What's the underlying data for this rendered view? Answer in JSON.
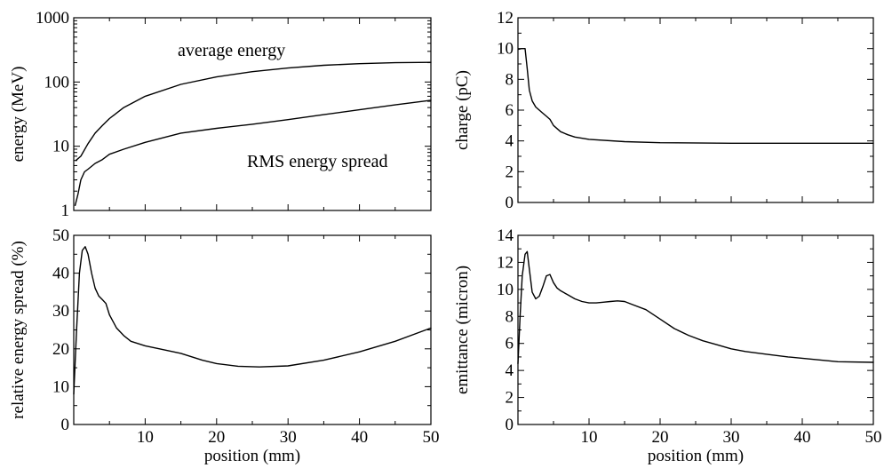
{
  "chart_data": [
    {
      "type": "line",
      "panel": "top-left",
      "xlabel": "",
      "ylabel": "energy (MeV)",
      "xlim": [
        0,
        50
      ],
      "ylim": [
        1,
        1000
      ],
      "yscale": "log",
      "xticks": [
        0,
        10,
        20,
        30,
        40,
        50
      ],
      "xtick_labels": [],
      "yticks": [
        1,
        10,
        100,
        1000
      ],
      "ytick_labels": [
        "1",
        "10",
        "100",
        "1000"
      ],
      "annotations": [
        "average energy",
        "RMS energy spread"
      ],
      "series": [
        {
          "name": "average energy",
          "x": [
            0.3,
            1.0,
            2.0,
            3.0,
            4.0,
            5.0,
            7.0,
            10.0,
            15.0,
            20.0,
            25.0,
            30.0,
            35.0,
            40.0,
            45.0,
            50.0
          ],
          "y": [
            6.0,
            7.0,
            11.0,
            16.0,
            21.0,
            27.0,
            40.0,
            60.0,
            92.0,
            120.0,
            145.0,
            165.0,
            182.0,
            193.0,
            200.0,
            202.0
          ]
        },
        {
          "name": "RMS energy spread",
          "x": [
            0.2,
            0.6,
            1.0,
            1.5,
            2.0,
            3.0,
            4.0,
            5.0,
            7.0,
            10.0,
            15.0,
            20.0,
            25.0,
            30.0,
            35.0,
            40.0,
            45.0,
            50.0
          ],
          "y": [
            1.2,
            1.8,
            3.0,
            4.0,
            4.4,
            5.4,
            6.2,
            7.5,
            9.0,
            11.5,
            16.0,
            19.0,
            22.0,
            26.0,
            31.0,
            37.0,
            44.0,
            52.0
          ]
        }
      ]
    },
    {
      "type": "line",
      "panel": "top-right",
      "xlabel": "",
      "ylabel": "charge (pC)",
      "xlim": [
        0,
        50
      ],
      "ylim": [
        0,
        12
      ],
      "xticks": [
        0,
        10,
        20,
        30,
        40,
        50
      ],
      "xtick_labels": [],
      "yticks": [
        0,
        2,
        4,
        6,
        8,
        10,
        12
      ],
      "ytick_labels": [
        "0",
        "2",
        "4",
        "6",
        "8",
        "10",
        "12"
      ],
      "series": [
        {
          "x": [
            0.1,
            0.5,
            1.0,
            1.3,
            1.6,
            2.0,
            2.5,
            3.0,
            3.5,
            4.0,
            4.5,
            5.0,
            6.0,
            7.0,
            8.0,
            10.0,
            15.0,
            20.0,
            30.0,
            40.0,
            50.0
          ],
          "y": [
            9.95,
            10.0,
            10.0,
            8.7,
            7.3,
            6.6,
            6.2,
            6.0,
            5.8,
            5.6,
            5.4,
            5.0,
            4.6,
            4.4,
            4.25,
            4.1,
            3.95,
            3.88,
            3.85,
            3.85,
            3.85
          ]
        }
      ]
    },
    {
      "type": "line",
      "panel": "bottom-left",
      "xlabel": "position (mm)",
      "ylabel": "relative energy spread (%)",
      "xlim": [
        0,
        50
      ],
      "ylim": [
        0,
        50
      ],
      "xticks": [
        0,
        10,
        20,
        30,
        40,
        50
      ],
      "xtick_labels": [
        "",
        "10",
        "20",
        "30",
        "40",
        "50"
      ],
      "yticks": [
        0,
        10,
        20,
        30,
        40,
        50
      ],
      "ytick_labels": [
        "0",
        "10",
        "20",
        "30",
        "40",
        "50"
      ],
      "series": [
        {
          "x": [
            0.0,
            0.4,
            0.8,
            1.2,
            1.6,
            2.0,
            2.5,
            3.0,
            3.5,
            4.0,
            4.5,
            5.0,
            6.0,
            7.0,
            8.0,
            10.0,
            12.0,
            15.0,
            18.0,
            20.0,
            23.0,
            26.0,
            30.0,
            35.0,
            40.0,
            45.0,
            50.0
          ],
          "y": [
            8.0,
            25.0,
            40.0,
            46.0,
            47.0,
            45.0,
            40.0,
            36.0,
            34.0,
            33.0,
            32.0,
            29.0,
            25.5,
            23.5,
            22.0,
            20.8,
            20.0,
            18.8,
            17.0,
            16.1,
            15.4,
            15.2,
            15.5,
            17.0,
            19.2,
            22.0,
            25.5
          ]
        }
      ]
    },
    {
      "type": "line",
      "panel": "bottom-right",
      "xlabel": "position (mm)",
      "ylabel": "emittance (micron)",
      "xlim": [
        0,
        50
      ],
      "ylim": [
        0,
        14
      ],
      "xticks": [
        0,
        10,
        20,
        30,
        40,
        50
      ],
      "xtick_labels": [
        "",
        "10",
        "20",
        "30",
        "40",
        "50"
      ],
      "yticks": [
        0,
        2,
        4,
        6,
        8,
        10,
        12,
        14
      ],
      "ytick_labels": [
        "0",
        "2",
        "4",
        "6",
        "8",
        "10",
        "12",
        "14"
      ],
      "series": [
        {
          "x": [
            0.0,
            0.3,
            0.6,
            1.0,
            1.3,
            1.6,
            2.0,
            2.5,
            3.0,
            3.5,
            4.0,
            4.5,
            5.0,
            5.5,
            6.0,
            7.0,
            8.0,
            9.0,
            10.0,
            11.0,
            12.0,
            13.0,
            14.0,
            15.0,
            16.0,
            18.0,
            20.0,
            22.0,
            24.0,
            26.0,
            28.0,
            30.0,
            32.0,
            35.0,
            38.0,
            40.0,
            45.0,
            50.0
          ],
          "y": [
            4.5,
            8.0,
            11.0,
            12.6,
            12.8,
            11.5,
            9.8,
            9.3,
            9.5,
            10.2,
            11.0,
            11.1,
            10.5,
            10.1,
            9.9,
            9.6,
            9.3,
            9.1,
            9.0,
            9.0,
            9.05,
            9.1,
            9.15,
            9.1,
            8.9,
            8.5,
            7.8,
            7.1,
            6.6,
            6.2,
            5.9,
            5.6,
            5.4,
            5.2,
            5.0,
            4.9,
            4.65,
            4.6
          ]
        }
      ]
    }
  ]
}
